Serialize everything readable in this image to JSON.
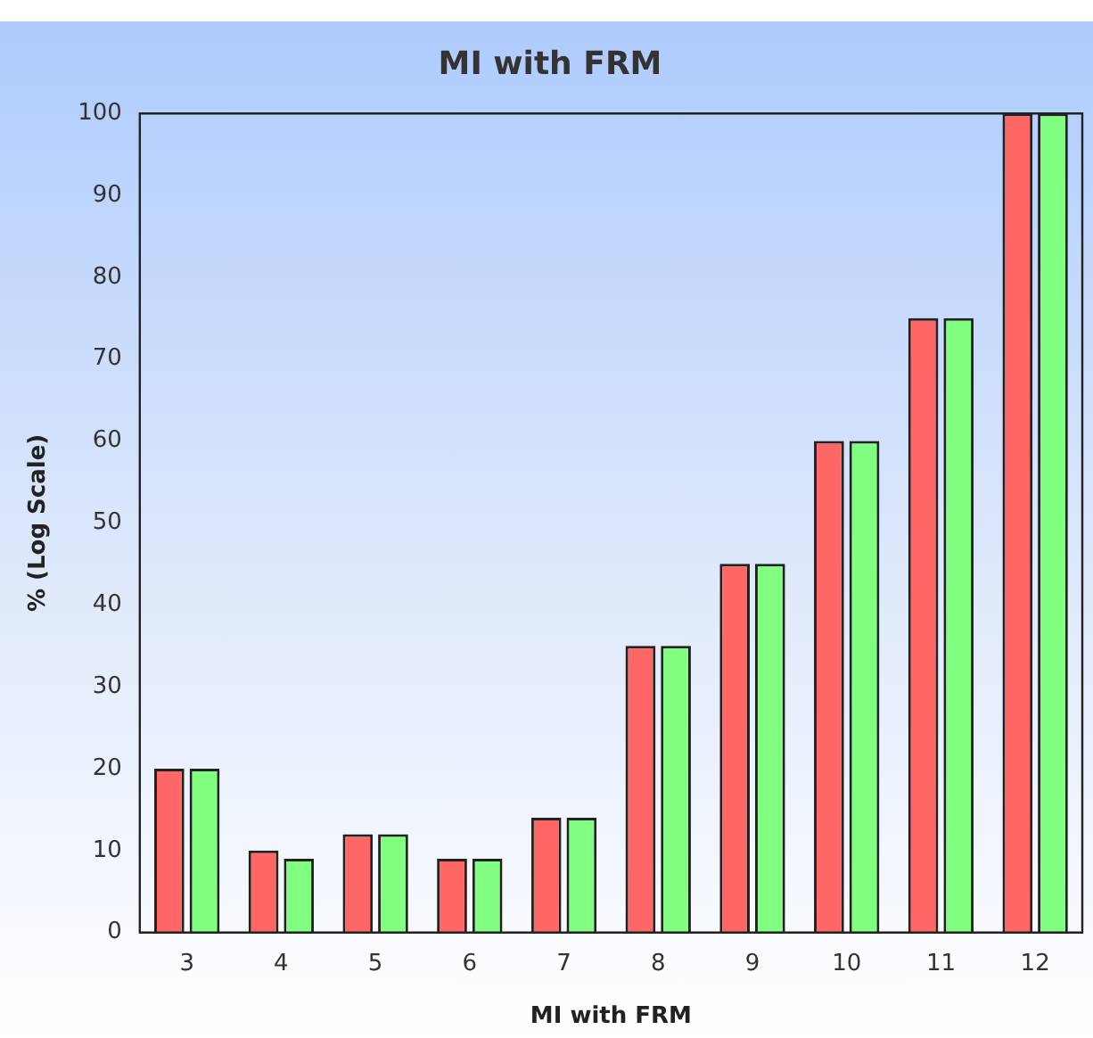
{
  "chart_data": {
    "type": "bar",
    "title": "MI with FRM",
    "xlabel": "MI with FRM",
    "ylabel": "% (Log Scale)",
    "categories": [
      "3",
      "4",
      "5",
      "6",
      "7",
      "8",
      "9",
      "10",
      "11",
      "12"
    ],
    "series": [
      {
        "color": "#ff6666",
        "values": [
          20,
          10,
          12,
          9,
          14,
          35,
          45,
          60,
          75,
          100
        ]
      },
      {
        "color": "#80ff80",
        "values": [
          20,
          9,
          12,
          9,
          14,
          35,
          45,
          60,
          75,
          100
        ]
      }
    ],
    "ylim": [
      0,
      100
    ],
    "yticks": [
      0,
      10,
      20,
      30,
      40,
      50,
      60,
      70,
      80,
      90,
      100
    ],
    "grid": false,
    "legend": false
  }
}
